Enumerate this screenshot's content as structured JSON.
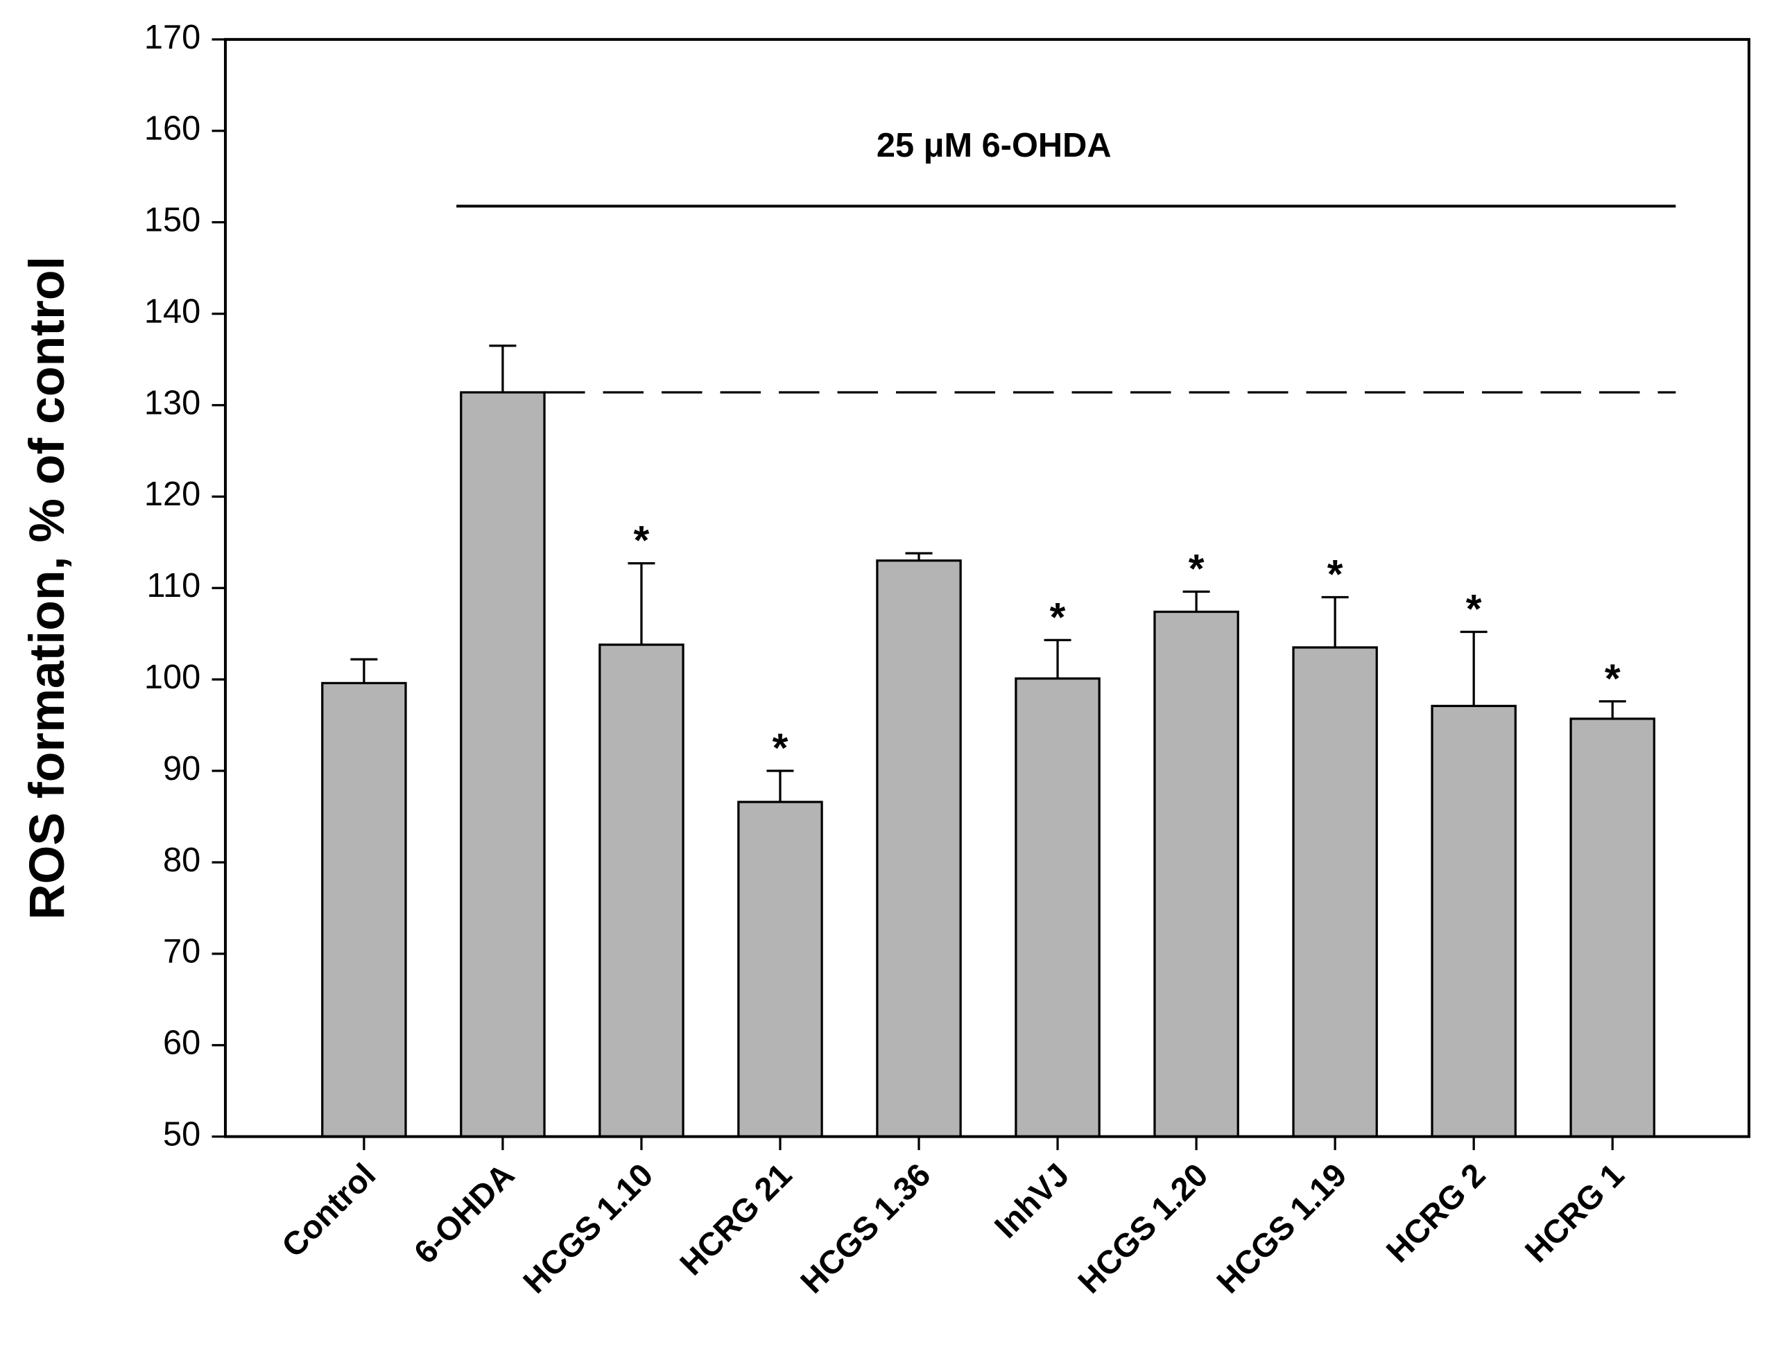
{
  "chart_data": {
    "type": "bar",
    "y_label": "ROS formation, % of control",
    "annotation": "25 μM  6-OHDA",
    "categories": [
      "Control",
      "6-OHDA",
      "HCGS 1.10",
      "HCRG 21",
      "HCGS 1.36",
      "InhVJ",
      "HCGS 1.20",
      "HCGS 1.19",
      "HCRG 2",
      "HCRG 1"
    ],
    "values": [
      99.6,
      131.4,
      103.8,
      86.6,
      113.0,
      100.1,
      107.4,
      103.5,
      97.1,
      95.7
    ],
    "errors": [
      2.6,
      5.1,
      8.9,
      3.4,
      0.8,
      4.2,
      2.2,
      5.5,
      8.1,
      1.9
    ],
    "significance": [
      null,
      null,
      "*",
      "*",
      null,
      "*",
      "*",
      "*",
      "*",
      "*"
    ],
    "color": "#b4b4b4",
    "ylim": [
      50,
      170
    ],
    "yticks": [
      50,
      60,
      70,
      80,
      90,
      100,
      110,
      120,
      130,
      140,
      150,
      160,
      170
    ]
  }
}
